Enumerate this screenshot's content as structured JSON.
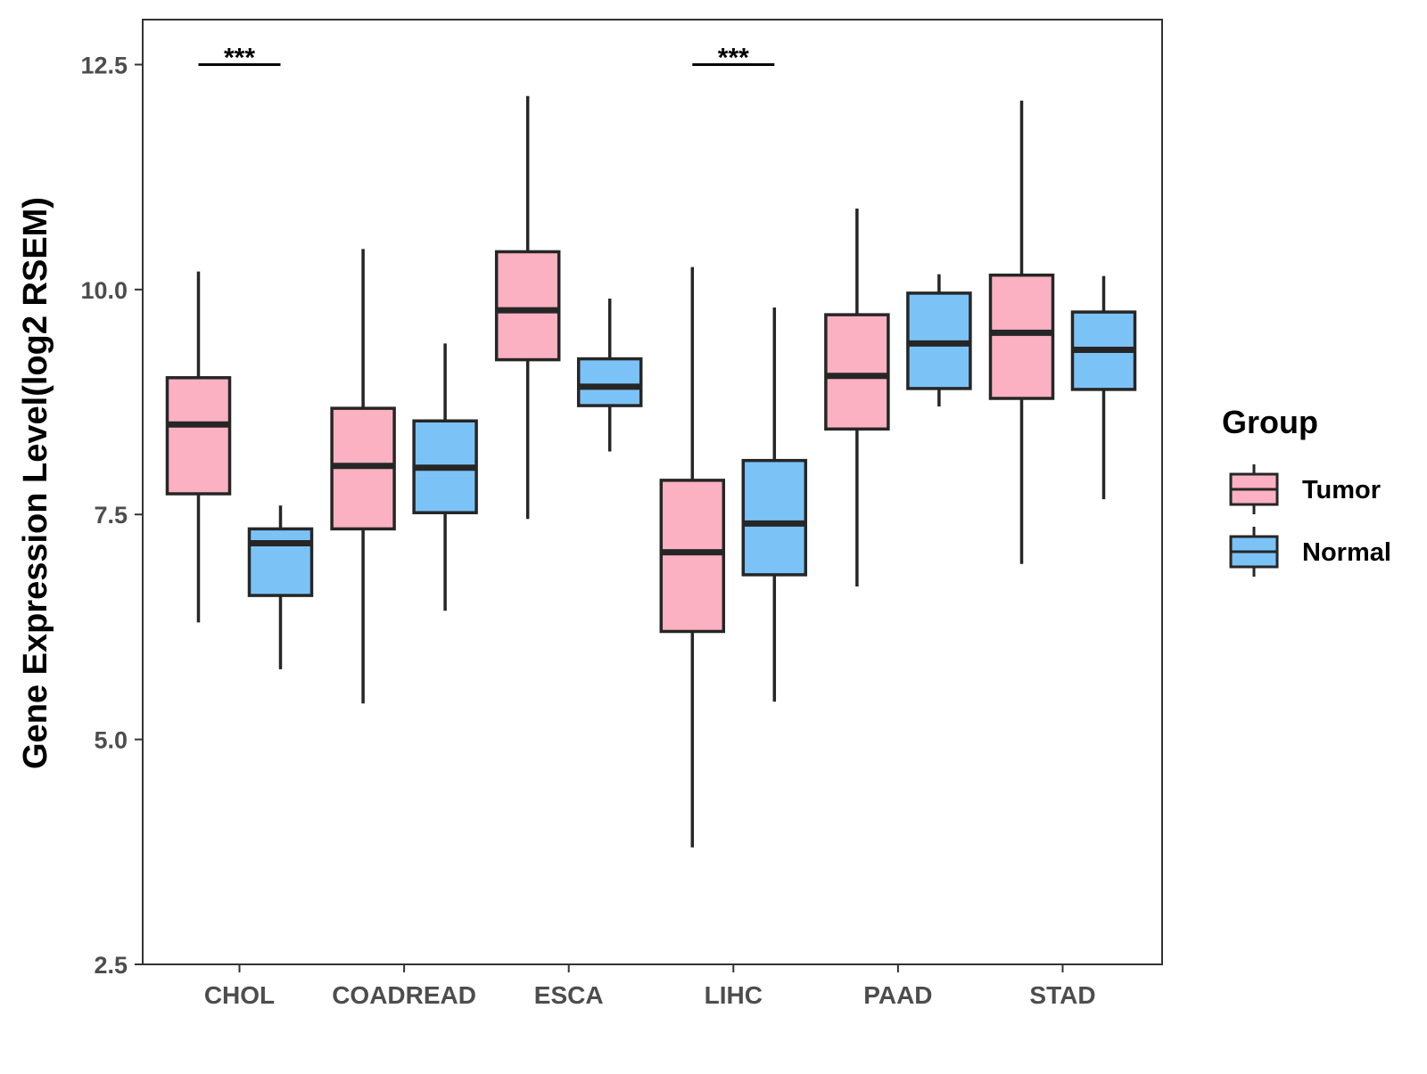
{
  "chart_data": {
    "type": "boxplot",
    "title": "",
    "xlabel": "",
    "ylabel": "Gene Expression Level(log2 RSEM)",
    "ylim": [
      2.5,
      13.0
    ],
    "yticks": [
      2.5,
      5.0,
      7.5,
      10.0,
      12.5
    ],
    "ytick_labels": [
      "2.5",
      "5.0",
      "7.5",
      "10.0",
      "12.5"
    ],
    "categories": [
      "CHOL",
      "COADREAD",
      "ESCA",
      "LIHC",
      "PAAD",
      "STAD"
    ],
    "legend": {
      "title": "Group",
      "position": "right",
      "entries": [
        {
          "name": "Tumor",
          "color": "#fbb1c2"
        },
        {
          "name": "Normal",
          "color": "#7bc3f7"
        }
      ]
    },
    "series": [
      {
        "name": "Tumor",
        "color": "#fbb1c2",
        "boxes": [
          {
            "min": 6.3,
            "q1": 7.73,
            "median": 8.5,
            "q3": 9.02,
            "max": 10.2
          },
          {
            "min": 5.4,
            "q1": 7.34,
            "median": 8.04,
            "q3": 8.68,
            "max": 10.45
          },
          {
            "min": 7.45,
            "q1": 9.22,
            "median": 9.77,
            "q3": 10.42,
            "max": 12.15
          },
          {
            "min": 3.8,
            "q1": 6.2,
            "median": 7.08,
            "q3": 7.88,
            "max": 10.25
          },
          {
            "min": 6.7,
            "q1": 8.45,
            "median": 9.04,
            "q3": 9.72,
            "max": 10.9
          },
          {
            "min": 6.95,
            "q1": 8.79,
            "median": 9.52,
            "q3": 10.16,
            "max": 12.1
          }
        ]
      },
      {
        "name": "Normal",
        "color": "#7bc3f7",
        "boxes": [
          {
            "min": 5.78,
            "q1": 6.6,
            "median": 7.18,
            "q3": 7.34,
            "max": 7.6
          },
          {
            "min": 6.43,
            "q1": 7.52,
            "median": 8.02,
            "q3": 8.54,
            "max": 9.4
          },
          {
            "min": 8.2,
            "q1": 8.71,
            "median": 8.92,
            "q3": 9.23,
            "max": 9.9
          },
          {
            "min": 5.42,
            "q1": 6.83,
            "median": 7.4,
            "q3": 8.1,
            "max": 9.8
          },
          {
            "min": 8.7,
            "q1": 8.9,
            "median": 9.4,
            "q3": 9.96,
            "max": 10.17
          },
          {
            "min": 7.67,
            "q1": 8.89,
            "median": 9.33,
            "q3": 9.75,
            "max": 10.15
          }
        ]
      }
    ],
    "annotations": [
      {
        "category": "CHOL",
        "text": "***",
        "y": 12.5
      },
      {
        "category": "LIHC",
        "text": "***",
        "y": 12.5
      }
    ]
  }
}
